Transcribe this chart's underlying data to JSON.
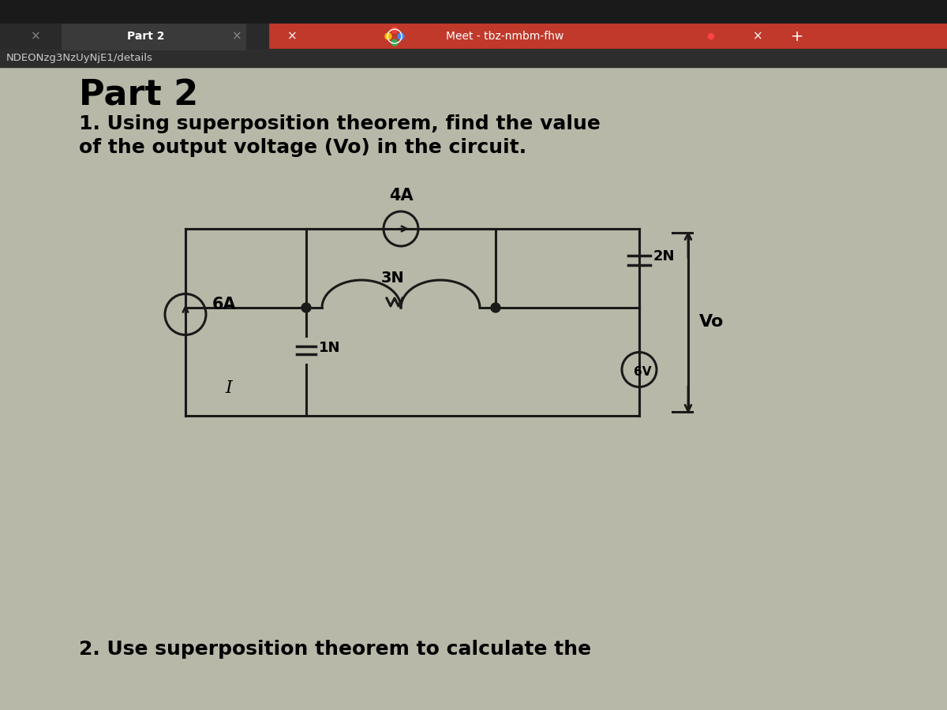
{
  "bg_top_bar_dark": "#1a1a1a",
  "bg_top_bar_red": "#c0392b",
  "bg_url_bar": "#2d2d2d",
  "bg_content": "#b8b8a8",
  "bg_paper": "#d0d0c0",
  "title": "Part 2",
  "question1_line1": "1. Using superposition theorem, find the value",
  "question1_line2": "of the output voltage (Vo) in the circuit.",
  "question2": "2. Use superposition theorem to calculate the",
  "url_text": "NDEONzg3NzUyNjE1/details",
  "tab1_text": "Part 2",
  "tab2_text": "Meet - tbz-nmbm-fhw",
  "label_4A": "4A",
  "label_6A": "6A",
  "label_3N": "3N",
  "label_2N": "2N",
  "label_1N": "1N",
  "label_6V": "6V",
  "label_Vo": "Vo",
  "label_I": "I",
  "lc": "#1a1a1a"
}
